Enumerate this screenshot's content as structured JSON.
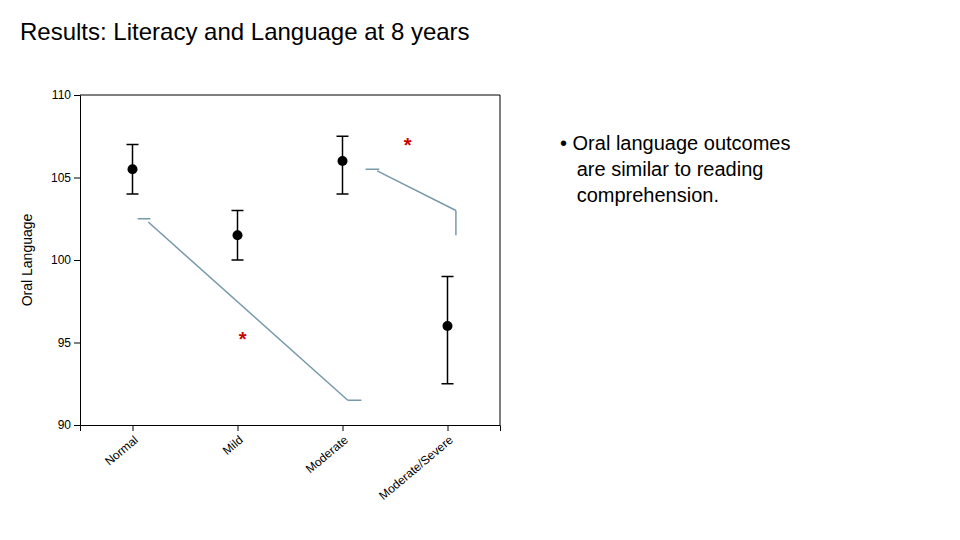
{
  "chart_data": {
    "type": "errorbar",
    "title": "Results: Literacy and Language at 8 years",
    "ylabel": "Oral Language",
    "categories": [
      "Normal",
      "Mild",
      "Moderate",
      "Moderate/Severe"
    ],
    "values": [
      105.5,
      101.5,
      106.0,
      96.0
    ],
    "error_upper": [
      1.5,
      1.5,
      1.5,
      3.0
    ],
    "error_lower": [
      1.5,
      1.5,
      2.0,
      3.5
    ],
    "color": "#000000",
    "marker": "o",
    "ylim": [
      90,
      110
    ],
    "yticks": [
      90,
      95,
      100,
      105,
      110
    ],
    "grid": false,
    "lines": [
      {
        "x": [
          0.05,
          0.17
        ],
        "y": [
          102.5,
          102.5
        ],
        "color": "#7799aa"
      },
      {
        "x": [
          0.15,
          2.05
        ],
        "y": [
          102.3,
          91.5
        ],
        "color": "#7799aa"
      },
      {
        "x": [
          2.05,
          2.18
        ],
        "y": [
          91.5,
          91.5
        ],
        "color": "#7799aa"
      },
      {
        "x": [
          2.22,
          2.35
        ],
        "y": [
          105.5,
          105.5
        ],
        "color": "#7799aa"
      },
      {
        "x": [
          2.33,
          3.08
        ],
        "y": [
          105.4,
          103.0
        ],
        "color": "#7799aa"
      },
      {
        "x": [
          3.08,
          3.08
        ],
        "y": [
          103.0,
          101.5
        ],
        "color": "#7799aa"
      }
    ],
    "annotations": [
      {
        "text": "*",
        "x": 1.05,
        "y": 95.2,
        "color": "#cc0000"
      },
      {
        "text": "*",
        "x": 2.62,
        "y": 107.0,
        "color": "#cc0000"
      }
    ],
    "annotation_text": "• Oral language outcomes\n   are similar to reading\n   comprehension."
  }
}
